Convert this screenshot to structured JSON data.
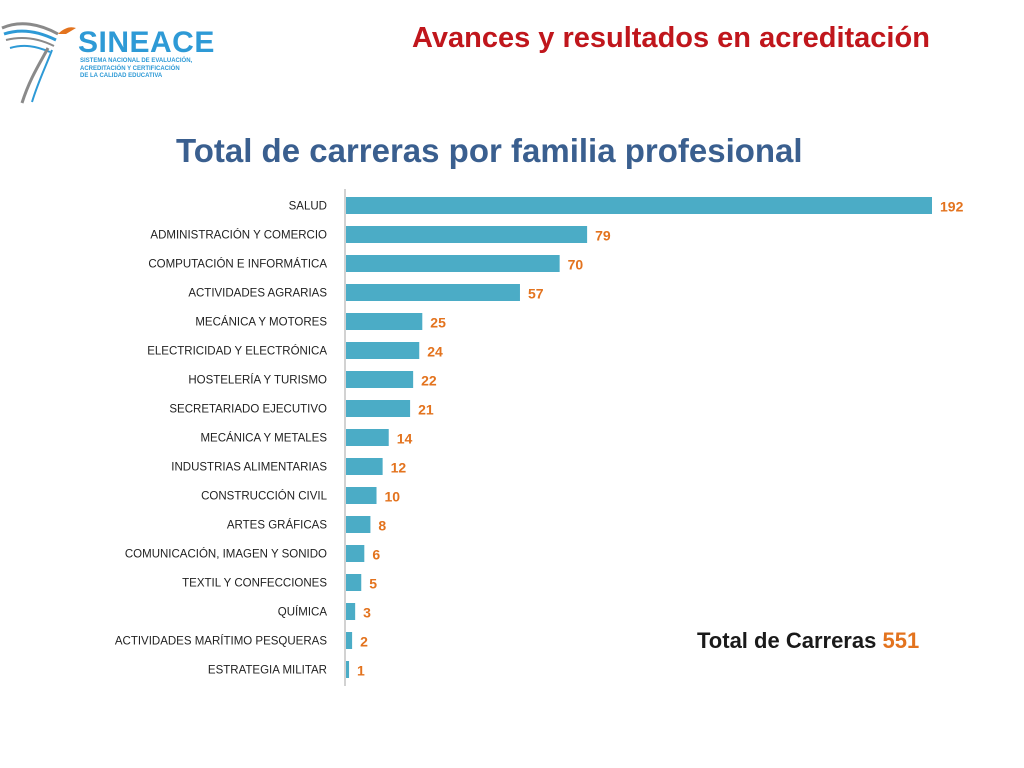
{
  "header": {
    "title": "Avances y resultados en acreditación"
  },
  "logo": {
    "name": "SINEACE",
    "subtitle_lines": [
      "SISTEMA NACIONAL DE EVALUACIÓN,",
      "ACREDITACIÓN Y CERTIFICACIÓN",
      "DE LA CALIDAD EDUCATIVA"
    ],
    "colors": {
      "blue": "#2e9ad6",
      "gray": "#8a8a8a",
      "orange": "#e3731e"
    }
  },
  "chart_data": {
    "type": "bar",
    "orientation": "horizontal",
    "title": "Total de carreras por familia profesional",
    "categories": [
      "SALUD",
      "ADMINISTRACIÓN Y COMERCIO",
      "COMPUTACIÓN E INFORMÁTICA",
      "ACTIVIDADES AGRARIAS",
      "MECÁNICA Y MOTORES",
      "ELECTRICIDAD Y ELECTRÓNICA",
      "HOSTELERÍA Y TURISMO",
      "SECRETARIADO EJECUTIVO",
      "MECÁNICA Y METALES",
      "INDUSTRIAS ALIMENTARIAS",
      "CONSTRUCCIÓN CIVIL",
      "ARTES GRÁFICAS",
      "COMUNICACIÓN, IMAGEN Y SONIDO",
      "TEXTIL Y CONFECCIONES",
      "QUÍMICA",
      "ACTIVIDADES MARÍTIMO PESQUERAS",
      "ESTRATEGIA MILITAR"
    ],
    "values": [
      192,
      79,
      70,
      57,
      25,
      24,
      22,
      21,
      14,
      12,
      10,
      8,
      6,
      5,
      3,
      2,
      1
    ],
    "xlim": [
      0,
      192
    ],
    "grid": false,
    "bar_color": "#4bacc6",
    "label_color": "#e3731e"
  },
  "total": {
    "label": "Total de Carreras",
    "value": "551"
  }
}
